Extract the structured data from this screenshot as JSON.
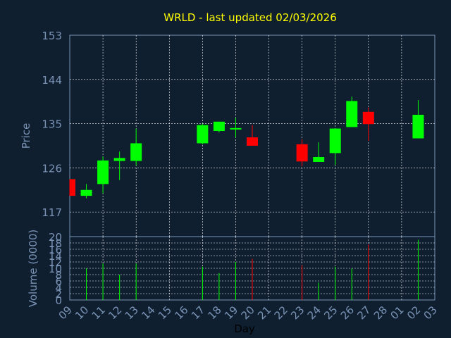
{
  "chart_data": {
    "type": "candlestick",
    "title": "WRLD - last updated 02/03/2026",
    "xlabel": "Day",
    "colors": {
      "up": "#00ff00",
      "down": "#ff0000",
      "background": "#0f1f30",
      "grid": "#ffffff",
      "axis": "#7a93b5",
      "title": "#ffff00"
    },
    "x_ticks": [
      "09",
      "10",
      "11",
      "12",
      "13",
      "14",
      "15",
      "16",
      "17",
      "18",
      "19",
      "20",
      "21",
      "22",
      "23",
      "24",
      "25",
      "26",
      "27",
      "28",
      "01",
      "02",
      "03"
    ],
    "price_panel": {
      "ylabel": "Price",
      "ylim": [
        112,
        153
      ],
      "y_ticks": [
        153,
        144,
        135,
        126,
        117
      ]
    },
    "volume_panel": {
      "ylabel": "Volume (0000)",
      "ylim": [
        0,
        20
      ],
      "y_ticks": [
        0,
        2,
        4,
        6,
        8,
        10,
        12,
        14,
        16,
        18,
        20
      ]
    },
    "candles": [
      {
        "day": "09",
        "open": 123.7,
        "close": 120.3,
        "high": 123.7,
        "low": 120.3
      },
      {
        "day": "10",
        "open": 120.3,
        "close": 121.5,
        "high": 122.7,
        "low": 119.8
      },
      {
        "day": "11",
        "open": 122.7,
        "close": 127.5,
        "high": 128.3,
        "low": 120.8
      },
      {
        "day": "12",
        "open": 127.4,
        "close": 128.0,
        "high": 129.3,
        "low": 123.5
      },
      {
        "day": "13",
        "open": 127.4,
        "close": 131.0,
        "high": 134.0,
        "low": 126.5
      },
      {
        "day": "17",
        "open": 131.0,
        "close": 134.7,
        "high": 135.0,
        "low": 130.8
      },
      {
        "day": "18",
        "open": 133.5,
        "close": 135.4,
        "high": 135.4,
        "low": 133.2
      },
      {
        "day": "19",
        "open": 133.8,
        "close": 134.1,
        "high": 136.2,
        "low": 132.2
      },
      {
        "day": "20",
        "open": 132.2,
        "close": 130.5,
        "high": 134.7,
        "low": 130.5
      },
      {
        "day": "23",
        "open": 130.8,
        "close": 127.3,
        "high": 131.8,
        "low": 126.3
      },
      {
        "day": "24",
        "open": 127.2,
        "close": 128.2,
        "high": 131.2,
        "low": 127.2
      },
      {
        "day": "25",
        "open": 129.0,
        "close": 134.0,
        "high": 134.0,
        "low": 126.6
      },
      {
        "day": "26",
        "open": 134.3,
        "close": 139.6,
        "high": 140.5,
        "low": 134.3
      },
      {
        "day": "27",
        "open": 137.4,
        "close": 134.9,
        "high": 138.3,
        "low": 131.5
      },
      {
        "day": "02",
        "open": 132.0,
        "close": 136.8,
        "high": 139.8,
        "low": 132.0
      }
    ],
    "volume": [
      {
        "day": "10",
        "value": 10,
        "dir": "up"
      },
      {
        "day": "11",
        "value": 11.5,
        "dir": "up"
      },
      {
        "day": "12",
        "value": 8,
        "dir": "up"
      },
      {
        "day": "13",
        "value": 11.5,
        "dir": "up"
      },
      {
        "day": "17",
        "value": 10.5,
        "dir": "up"
      },
      {
        "day": "18",
        "value": 8.5,
        "dir": "up"
      },
      {
        "day": "19",
        "value": 12,
        "dir": "up"
      },
      {
        "day": "20",
        "value": 13,
        "dir": "down"
      },
      {
        "day": "23",
        "value": 11,
        "dir": "down"
      },
      {
        "day": "24",
        "value": 5.5,
        "dir": "up"
      },
      {
        "day": "25",
        "value": 10.5,
        "dir": "up"
      },
      {
        "day": "26",
        "value": 10,
        "dir": "up"
      },
      {
        "day": "27",
        "value": 17.5,
        "dir": "down"
      },
      {
        "day": "02",
        "value": 19,
        "dir": "up"
      }
    ]
  }
}
